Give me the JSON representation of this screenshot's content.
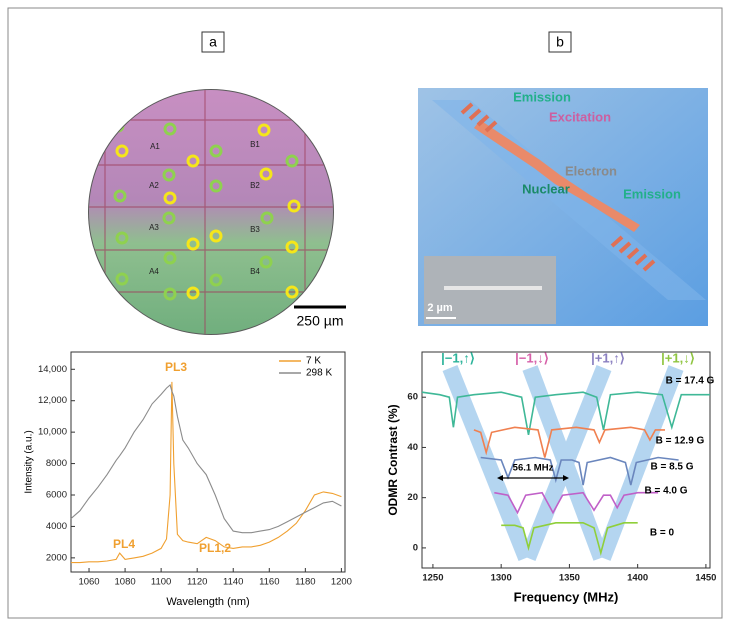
{
  "panel_labels": [
    "a",
    "b"
  ],
  "wafer": {
    "labels": [
      "A1",
      "A2",
      "A3",
      "A4",
      "B1",
      "B2",
      "B3",
      "B4"
    ],
    "scale_bar": "250 µm"
  },
  "device": {
    "labels": [
      "Emission",
      "Excitation",
      "Electron",
      "Nuclear",
      "Emission"
    ],
    "scale_bar": "2 µm"
  },
  "chart_data": [
    {
      "type": "line",
      "x_label": "Wavelength (nm)",
      "y_label": "Intensity (a.u.)",
      "xlim": [
        1050,
        1202
      ],
      "ylim": [
        1100,
        15100
      ],
      "xticks": [
        1060,
        1080,
        1100,
        1120,
        1140,
        1160,
        1180,
        1200
      ],
      "yticks": [
        2000,
        4000,
        6000,
        8000,
        {
          "value": 10000,
          "label": "10,000"
        },
        {
          "value": 12000,
          "label": "12,000"
        },
        {
          "value": 14000,
          "label": "14,000"
        }
      ],
      "legend": "upper right",
      "annotations": [
        "PL3",
        "PL4",
        "PL1,2"
      ],
      "x": [
        1050,
        1055,
        1060,
        1065,
        1070,
        1075,
        1077,
        1080,
        1085,
        1090,
        1095,
        1100,
        1103,
        1105,
        1106,
        1107,
        1109,
        1112,
        1115,
        1120,
        1125,
        1130,
        1135,
        1140,
        1145,
        1150,
        1155,
        1160,
        1165,
        1170,
        1175,
        1180,
        1185,
        1190,
        1195,
        1200
      ],
      "series": [
        {
          "name": "7 K",
          "color": "#f0a030",
          "values": [
            1700,
            1700,
            1750,
            1750,
            1800,
            1900,
            2300,
            1900,
            2000,
            2100,
            2300,
            2600,
            3200,
            6000,
            13200,
            8000,
            3500,
            3100,
            3000,
            2900,
            3300,
            3100,
            2700,
            2600,
            2700,
            2700,
            2800,
            3000,
            3300,
            3700,
            4200,
            5000,
            6000,
            6200,
            6100,
            5900
          ]
        },
        {
          "name": "298 K",
          "color": "#8c8c8c",
          "values": [
            4500,
            5000,
            5800,
            6500,
            7300,
            8200,
            8500,
            9000,
            10000,
            10800,
            11800,
            12400,
            12800,
            13000,
            12600,
            12300,
            11000,
            9500,
            9000,
            8000,
            7300,
            6000,
            4500,
            3700,
            3600,
            3600,
            3700,
            3800,
            4000,
            4300,
            4600,
            4900,
            5200,
            5500,
            5600,
            5300
          ]
        }
      ]
    },
    {
      "type": "line",
      "x_label": "Frequency (MHz)",
      "y_label": "ODMR Contrast (%)",
      "xlim": [
        1242,
        1453
      ],
      "ylim": [
        -8,
        78
      ],
      "xticks": [
        1250,
        1300,
        1350,
        1400,
        1450
      ],
      "yticks": [
        0,
        20,
        40,
        60
      ],
      "state_labels": [
        {
          "text": "|−1,↑⟩",
          "color": "#2bb39a"
        },
        {
          "text": "|−1,↓⟩",
          "color": "#d65fa8"
        },
        {
          "text": "|+1,↑⟩",
          "color": "#8a7fc0"
        },
        {
          "text": "|+1,↓⟩",
          "color": "#8fc540"
        }
      ],
      "annotations": [
        "56.1 MHz"
      ],
      "series": [
        {
          "name": "B = 17.4 G",
          "color": "#3fb897",
          "x": [
            1242,
            1255,
            1262,
            1265,
            1268,
            1280,
            1300,
            1315,
            1320,
            1325,
            1340,
            1360,
            1370,
            1375,
            1380,
            1400,
            1418,
            1425,
            1432,
            1453
          ],
          "values": [
            62,
            61,
            60,
            48,
            60,
            61,
            62,
            60,
            45,
            60,
            61,
            62,
            60,
            47,
            61,
            62,
            61,
            48,
            61,
            61
          ]
        },
        {
          "name": "B = 12.9 G",
          "color": "#f08050",
          "x": [
            1280,
            1285,
            1289,
            1293,
            1310,
            1327,
            1332,
            1337,
            1355,
            1368,
            1372,
            1376,
            1395,
            1405,
            1409,
            1413,
            1420
          ],
          "values": [
            47,
            46,
            38,
            46,
            48,
            47,
            36,
            47,
            48,
            47,
            42,
            47,
            48,
            47,
            43,
            47,
            47
          ]
        },
        {
          "name": "B = 8.5 G",
          "color": "#6a86bd",
          "x": [
            1285,
            1300,
            1305,
            1310,
            1325,
            1336,
            1340,
            1344,
            1352,
            1357,
            1360,
            1363,
            1380,
            1391,
            1395,
            1399,
            1415,
            1430
          ],
          "values": [
            36,
            35,
            28,
            35,
            36,
            35,
            27,
            35,
            35,
            34,
            25,
            34,
            36,
            34,
            25,
            34,
            36,
            35
          ]
        },
        {
          "name": "B = 4.0 G",
          "color": "#c060c8",
          "x": [
            1295,
            1305,
            1312,
            1318,
            1330,
            1338,
            1345,
            1360,
            1368,
            1375,
            1380,
            1385,
            1390,
            1400,
            1415
          ],
          "values": [
            22,
            21,
            14,
            21,
            22,
            14,
            21,
            22,
            15,
            21,
            21,
            16,
            21,
            22,
            22
          ]
        },
        {
          "name": "B = 0",
          "color": "#8fcf3a",
          "x": [
            1300,
            1310,
            1316,
            1320,
            1324,
            1340,
            1360,
            1368,
            1373,
            1378,
            1390,
            1400
          ],
          "values": [
            9,
            9,
            8,
            0,
            8,
            10,
            10,
            8,
            -2,
            8,
            10,
            10
          ]
        }
      ]
    }
  ]
}
